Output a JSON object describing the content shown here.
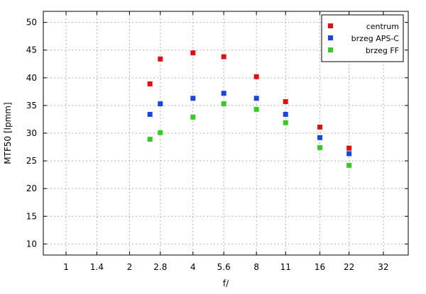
{
  "chart_data": {
    "type": "scatter",
    "xlabel": "f/",
    "ylabel": "MTF50 [lpmm]",
    "x_scale": "log",
    "x_ticks": [
      1,
      1.4,
      2,
      2.8,
      4,
      5.6,
      8,
      11,
      16,
      22,
      32
    ],
    "x_tick_labels": [
      "1",
      "1.4",
      "2",
      "2.8",
      "4",
      "5.6",
      "8",
      "11",
      "16",
      "22",
      "32"
    ],
    "xlim": [
      0.78,
      42
    ],
    "y_ticks": [
      10,
      15,
      20,
      25,
      30,
      35,
      40,
      45,
      50
    ],
    "ylim": [
      8,
      52
    ],
    "grid": true,
    "legend_position": "top-right",
    "x": [
      2.5,
      2.8,
      4,
      5.6,
      8,
      11,
      16,
      22
    ],
    "series": [
      {
        "name": "centrum",
        "color": "#e01010",
        "values": [
          38.9,
          43.4,
          44.5,
          43.8,
          40.2,
          35.7,
          31.1,
          27.3
        ]
      },
      {
        "name": "brzeg APS-C",
        "color": "#1a44e0",
        "values": [
          33.4,
          35.3,
          36.3,
          37.2,
          36.3,
          33.4,
          29.2,
          26.3
        ]
      },
      {
        "name": "brzeg FF",
        "color": "#33cc22",
        "values": [
          28.9,
          30.1,
          32.9,
          35.3,
          34.3,
          31.9,
          27.4,
          24.2
        ]
      }
    ]
  }
}
